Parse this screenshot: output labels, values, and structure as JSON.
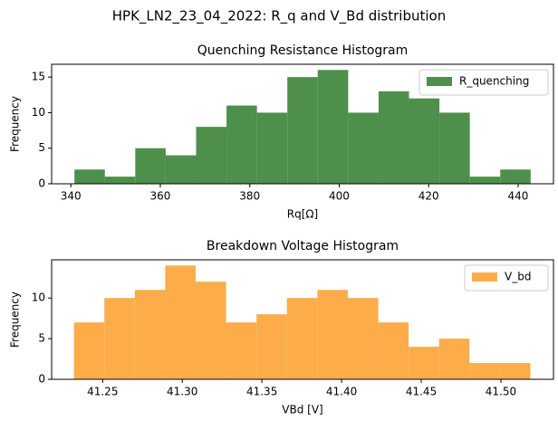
{
  "title": "HPK_LN2_23_04_2022: R_q and V_Bd distribution",
  "chart_data": [
    {
      "type": "histogram",
      "title": "Quenching Resistance Histogram",
      "xlabel": "Rq[Ω]",
      "ylabel": "Frequency",
      "series": [
        {
          "name": "R_quenching",
          "color": "#4e8f4b",
          "bins": [
            340.8,
            347.6,
            354.4,
            361.2,
            368,
            374.8,
            381.6,
            388.4,
            395.2,
            402,
            408.8,
            415.6,
            422.4,
            429.2,
            436,
            442.8
          ],
          "values": [
            2,
            1,
            5,
            4,
            8,
            11,
            10,
            15,
            16,
            10,
            13,
            12,
            10,
            1,
            2
          ]
        }
      ],
      "xlim": [
        335.7,
        447.9
      ],
      "xticks": [
        340,
        360,
        380,
        400,
        420,
        440
      ],
      "ylim": [
        0,
        16.8
      ],
      "yticks": [
        0,
        5,
        10,
        15
      ],
      "legend": "upper right"
    },
    {
      "type": "histogram",
      "title": "Breakdown Voltage Histogram",
      "xlabel": "VBd [V]",
      "ylabel": "Frequency",
      "series": [
        {
          "name": "V_bd",
          "color": "#fdac4a",
          "bins": [
            41.232,
            41.2511,
            41.2702,
            41.2893,
            41.3084,
            41.3275,
            41.3466,
            41.3657,
            41.3848,
            41.4039,
            41.423,
            41.4421,
            41.4612,
            41.4803,
            41.4994,
            41.5185
          ],
          "values": [
            7,
            10,
            11,
            14,
            12,
            7,
            8,
            10,
            11,
            10,
            7,
            4,
            5,
            2,
            2
          ]
        }
      ],
      "xlim": [
        41.218,
        41.533
      ],
      "xticks": [
        41.25,
        {
          "value": 41.3,
          "label": "41.30"
        },
        41.35,
        {
          "value": 41.4,
          "label": "41.40"
        },
        41.45,
        {
          "value": 41.5,
          "label": "41.50"
        }
      ],
      "ylim": [
        0,
        14.7
      ],
      "yticks": [
        0,
        5,
        10
      ],
      "legend": "upper right"
    }
  ]
}
